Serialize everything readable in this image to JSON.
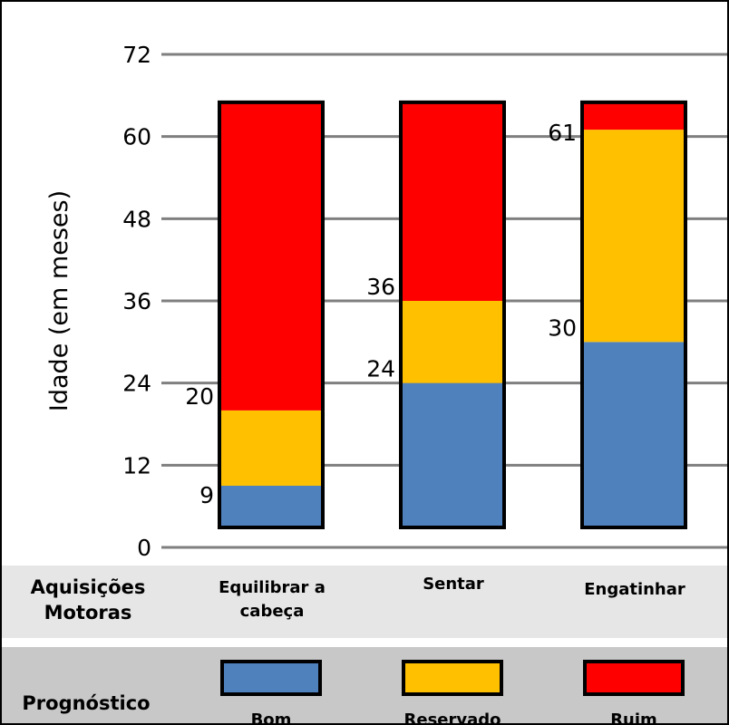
{
  "chart_data": {
    "type": "bar",
    "stacked": true,
    "ylabel": "Idade (em meses)",
    "ylim": [
      0,
      72
    ],
    "yticks": [
      0,
      12,
      24,
      36,
      48,
      60,
      72
    ],
    "grid": true,
    "categories": [
      "Equilibrar a cabeça",
      "Sentar",
      "Engatinhar"
    ],
    "series": [
      {
        "name": "Bom",
        "color": "#4f81bd",
        "values": [
          9,
          24,
          30
        ]
      },
      {
        "name": "Reservado",
        "color": "#ffc000",
        "values": [
          11,
          12,
          31
        ]
      },
      {
        "name": "Ruim",
        "color": "#ff0000",
        "values": [
          45,
          29,
          4
        ]
      }
    ],
    "data_labels": [
      {
        "category": 0,
        "value": 9,
        "text": "9"
      },
      {
        "category": 0,
        "value": 20,
        "text": "20"
      },
      {
        "category": 1,
        "value": 24,
        "text": "24"
      },
      {
        "category": 1,
        "value": 36,
        "text": "36"
      },
      {
        "category": 2,
        "value": 30,
        "text": "30"
      },
      {
        "category": 2,
        "value": 61,
        "text": "61"
      }
    ]
  },
  "table": {
    "acquisitions_title_line1": "Aquisições",
    "acquisitions_title_line2": "Motoras",
    "categories": [
      {
        "line1": "Equilibrar a",
        "line2": "cabeça"
      },
      {
        "line1": "Sentar",
        "line2": ""
      },
      {
        "line1": "Engatinhar",
        "line2": ""
      }
    ],
    "prognosis_title": "Prognóstico"
  },
  "legend": [
    {
      "label": "Bom",
      "color": "#4f81bd"
    },
    {
      "label": "Reservado",
      "color": "#ffc000"
    },
    {
      "label": "Ruim",
      "color": "#ff0000"
    }
  ]
}
